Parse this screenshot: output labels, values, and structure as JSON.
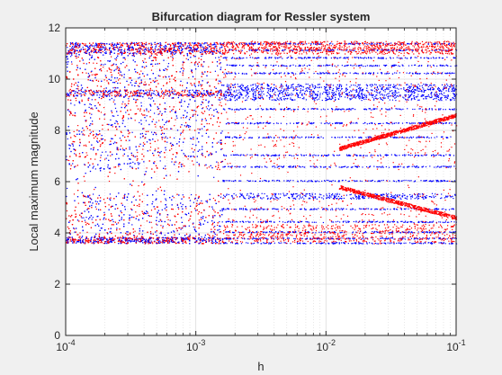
{
  "chart_data": {
    "type": "scatter",
    "title": "Bifurcation diagram for Ressler system",
    "xlabel": "h",
    "ylabel": "Local maximum magnitude",
    "x_scale": "log",
    "xlim": [
      0.0001,
      0.1
    ],
    "ylim": [
      0,
      12
    ],
    "grid": true,
    "minor_grid_x": true,
    "x_tick_labels": [
      {
        "base": "10",
        "exp": "-4",
        "value": 0.0001
      },
      {
        "base": "10",
        "exp": "-3",
        "value": 0.001
      },
      {
        "base": "10",
        "exp": "-2",
        "value": 0.01
      },
      {
        "base": "10",
        "exp": "-1",
        "value": 0.1
      }
    ],
    "y_ticks": [
      0,
      2,
      4,
      6,
      8,
      10,
      12
    ],
    "series": [
      {
        "color": "#0000ff",
        "marker": "point"
      },
      {
        "color": "#ff0000",
        "marker": "point"
      }
    ],
    "features": {
      "chaotic_region_h": [
        0.0001,
        0.0016
      ],
      "chaotic_band_y": [
        3.6,
        11.45
      ],
      "sparse_gap_y": [
        5.55,
        6.5
      ],
      "periodic_region_h": [
        0.0016,
        0.1
      ],
      "blue_level_lines_y": [
        3.62,
        3.8,
        4.05,
        4.45,
        4.95,
        5.45,
        6.05,
        6.6,
        7.05,
        7.75,
        8.3,
        8.85,
        9.3,
        9.5,
        9.72,
        10.25,
        10.55,
        10.85,
        11.15,
        11.4
      ],
      "red_branches_right": "curves diverging from y≈5.8–7.3 toward 4.6 and 8.6 as h increases beyond 0.02"
    }
  }
}
